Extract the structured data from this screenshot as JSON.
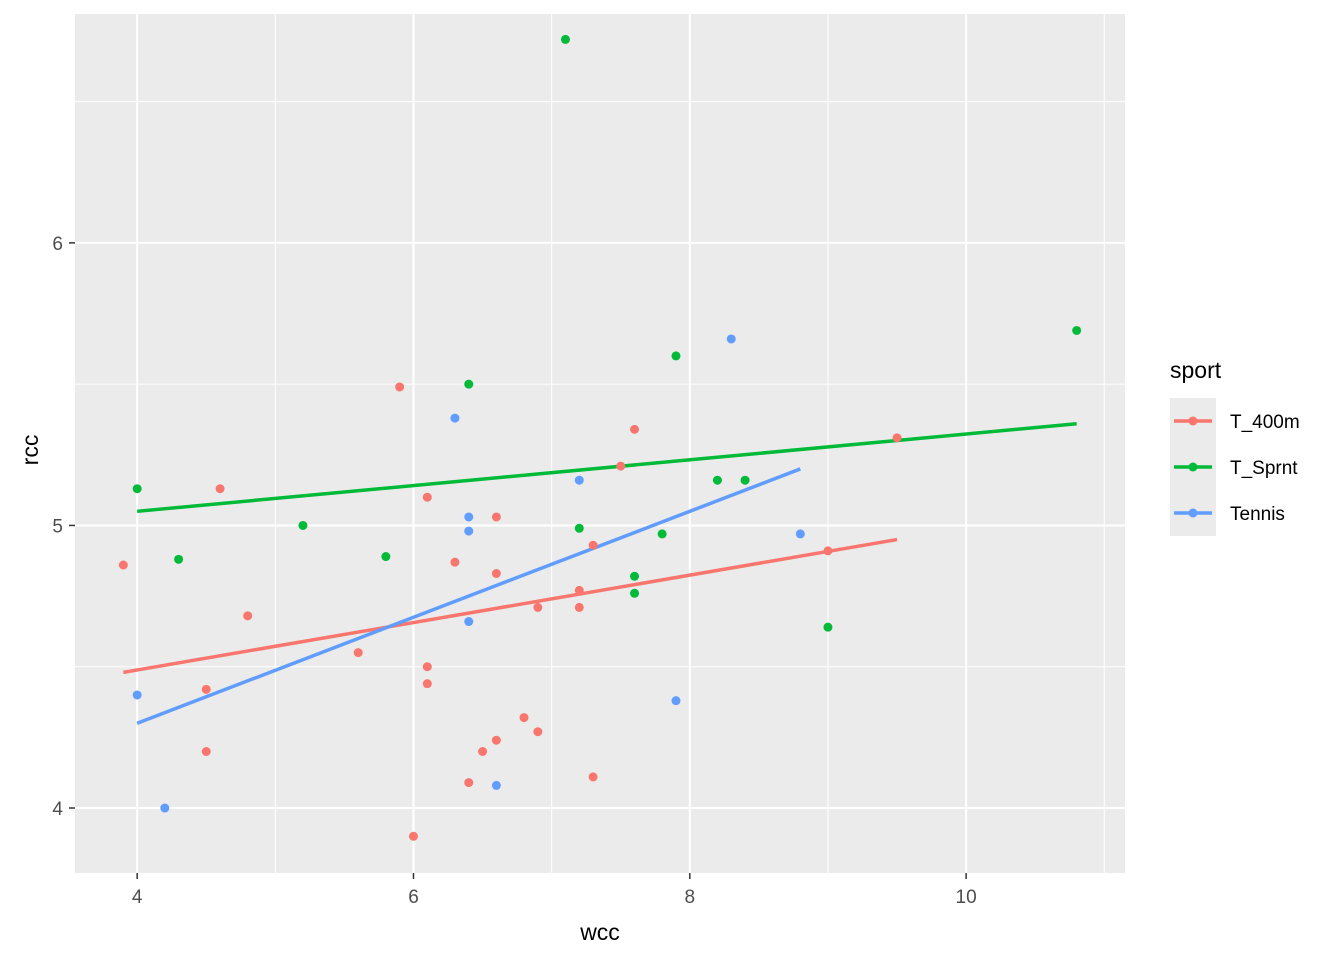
{
  "chart_data": {
    "type": "scatter",
    "xlabel": "wcc",
    "ylabel": "rcc",
    "xlim": [
      3.55,
      11.15
    ],
    "ylim": [
      3.77,
      6.81
    ],
    "xticks": [
      4,
      6,
      8,
      10
    ],
    "yticks": [
      4,
      5,
      6
    ],
    "xtick_labels": [
      "4",
      "6",
      "8",
      "10"
    ],
    "ytick_labels": [
      "4",
      "5",
      "6"
    ],
    "grid": true,
    "panel_background": "#ebebeb",
    "legend": {
      "title": "sport",
      "placement": "right"
    },
    "series": [
      {
        "name": "T_400m",
        "color": "#f8766d",
        "points": [
          [
            3.9,
            4.86
          ],
          [
            4.5,
            4.42
          ],
          [
            4.5,
            4.2
          ],
          [
            4.6,
            5.13
          ],
          [
            4.8,
            4.68
          ],
          [
            5.6,
            4.55
          ],
          [
            5.9,
            5.49
          ],
          [
            6.0,
            3.9
          ],
          [
            6.1,
            5.1
          ],
          [
            6.1,
            4.5
          ],
          [
            6.1,
            4.44
          ],
          [
            6.3,
            4.87
          ],
          [
            6.4,
            4.09
          ],
          [
            6.5,
            4.2
          ],
          [
            6.6,
            5.03
          ],
          [
            6.6,
            4.83
          ],
          [
            6.6,
            4.24
          ],
          [
            6.8,
            4.32
          ],
          [
            6.9,
            4.71
          ],
          [
            6.9,
            4.27
          ],
          [
            7.2,
            4.77
          ],
          [
            7.2,
            4.71
          ],
          [
            7.3,
            4.93
          ],
          [
            7.3,
            4.11
          ],
          [
            7.5,
            5.21
          ],
          [
            7.6,
            5.34
          ],
          [
            9.0,
            4.91
          ],
          [
            9.5,
            5.31
          ]
        ],
        "fit": [
          [
            3.9,
            4.48
          ],
          [
            9.5,
            4.95
          ]
        ]
      },
      {
        "name": "T_Sprnt",
        "color": "#00ba38",
        "points": [
          [
            4.0,
            5.13
          ],
          [
            4.3,
            4.88
          ],
          [
            5.2,
            5.0
          ],
          [
            5.8,
            4.89
          ],
          [
            6.4,
            5.5
          ],
          [
            7.1,
            6.72
          ],
          [
            7.2,
            4.99
          ],
          [
            7.6,
            4.82
          ],
          [
            7.6,
            4.76
          ],
          [
            7.8,
            4.97
          ],
          [
            7.9,
            5.6
          ],
          [
            8.2,
            5.16
          ],
          [
            8.4,
            5.16
          ],
          [
            9.0,
            4.64
          ],
          [
            10.8,
            5.69
          ]
        ],
        "fit": [
          [
            4.0,
            5.05
          ],
          [
            10.8,
            5.36
          ]
        ]
      },
      {
        "name": "Tennis",
        "color": "#619cff",
        "points": [
          [
            4.0,
            4.4
          ],
          [
            4.2,
            4.0
          ],
          [
            6.3,
            5.38
          ],
          [
            6.4,
            5.03
          ],
          [
            6.4,
            4.98
          ],
          [
            6.4,
            4.66
          ],
          [
            6.6,
            4.08
          ],
          [
            7.2,
            5.16
          ],
          [
            7.9,
            4.38
          ],
          [
            8.3,
            5.66
          ],
          [
            8.8,
            4.97
          ]
        ],
        "fit": [
          [
            4.0,
            4.3
          ],
          [
            8.8,
            5.2
          ]
        ]
      }
    ]
  }
}
